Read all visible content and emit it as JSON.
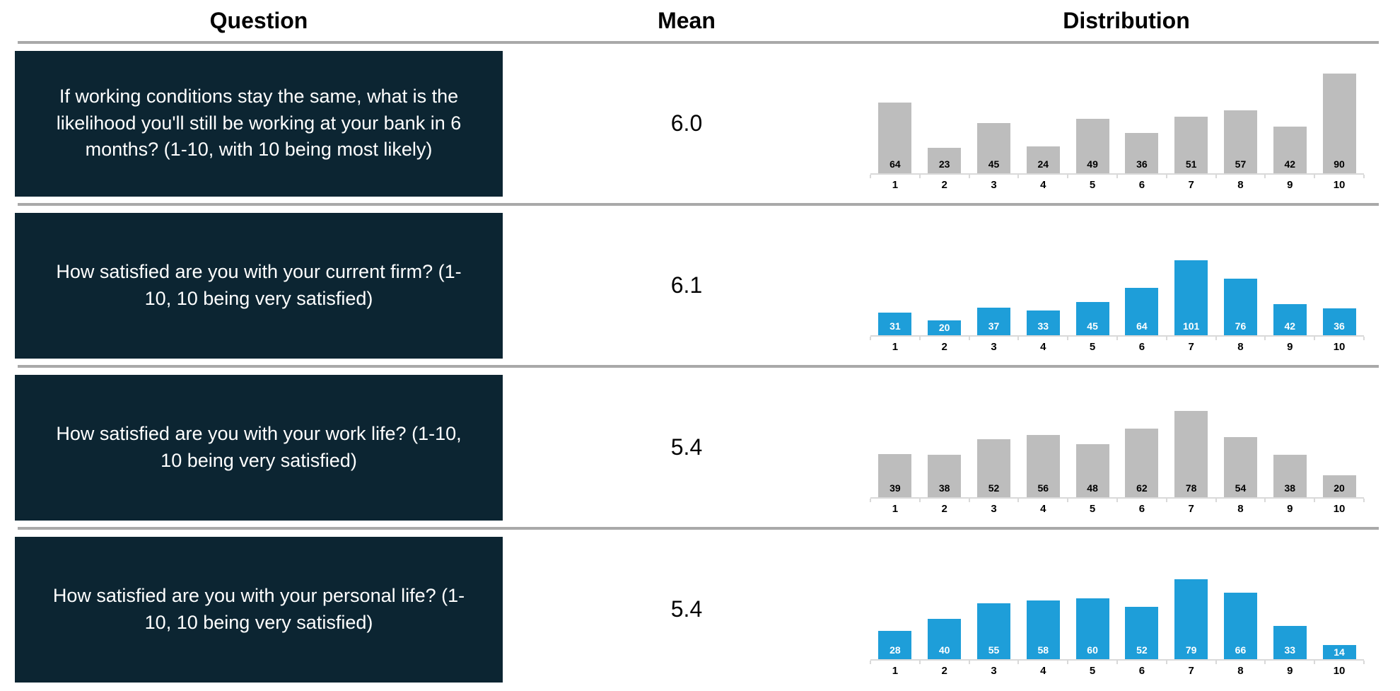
{
  "header": {
    "question": "Question",
    "mean": "Mean",
    "distribution": "Distribution"
  },
  "colors": {
    "question_box_bg": "#0c2532",
    "question_text": "#ffffff",
    "gray_bar": "#bdbdbd",
    "blue_bar": "#1e9ed9",
    "divider": "#a9a9a9",
    "axis_line": "#d9d9d9",
    "value_label_on_gray": "#000000",
    "value_label_on_blue": "#ffffff"
  },
  "rows": [
    {
      "question": "If working conditions stay the same, what is the likelihood you'll still be working at your bank in 6 months? (1-10, with 10 being most likely)",
      "mean": "6.0"
    },
    {
      "question": "How satisfied are you with your current firm? (1-10, 10 being very satisfied)",
      "mean": "6.1"
    },
    {
      "question": "How satisfied are you with your work life? (1-10, 10 being very satisfied)",
      "mean": "5.4"
    },
    {
      "question": "How satisfied are you with your personal life? (1-10, 10 being very satisfied)",
      "mean": "5.4"
    }
  ],
  "chart_data": [
    {
      "type": "bar",
      "categories": [
        "1",
        "2",
        "3",
        "4",
        "5",
        "6",
        "7",
        "8",
        "9",
        "10"
      ],
      "values": [
        64,
        23,
        45,
        24,
        49,
        36,
        51,
        57,
        42,
        90
      ],
      "ylim": [
        0,
        100
      ],
      "bar_color": "#bdbdbd",
      "value_label_color": "#000000",
      "xlabel": "",
      "ylabel": "",
      "grid": false,
      "legend": "none"
    },
    {
      "type": "bar",
      "categories": [
        "1",
        "2",
        "3",
        "4",
        "5",
        "6",
        "7",
        "8",
        "9",
        "10"
      ],
      "values": [
        31,
        20,
        37,
        33,
        45,
        64,
        101,
        76,
        42,
        36
      ],
      "ylim": [
        0,
        150
      ],
      "bar_color": "#1e9ed9",
      "value_label_color": "#ffffff",
      "xlabel": "",
      "ylabel": "",
      "grid": false,
      "legend": "none"
    },
    {
      "type": "bar",
      "categories": [
        "1",
        "2",
        "3",
        "4",
        "5",
        "6",
        "7",
        "8",
        "9",
        "10"
      ],
      "values": [
        39,
        38,
        52,
        56,
        48,
        62,
        78,
        54,
        38,
        20
      ],
      "ylim": [
        0,
        100
      ],
      "bar_color": "#bdbdbd",
      "value_label_color": "#000000",
      "xlabel": "",
      "ylabel": "",
      "grid": false,
      "legend": "none"
    },
    {
      "type": "bar",
      "categories": [
        "1",
        "2",
        "3",
        "4",
        "5",
        "6",
        "7",
        "8",
        "9",
        "10"
      ],
      "values": [
        28,
        40,
        55,
        58,
        60,
        52,
        79,
        66,
        33,
        14
      ],
      "ylim": [
        0,
        110
      ],
      "bar_color": "#1e9ed9",
      "value_label_color": "#ffffff",
      "xlabel": "",
      "ylabel": "",
      "grid": false,
      "legend": "none"
    }
  ]
}
